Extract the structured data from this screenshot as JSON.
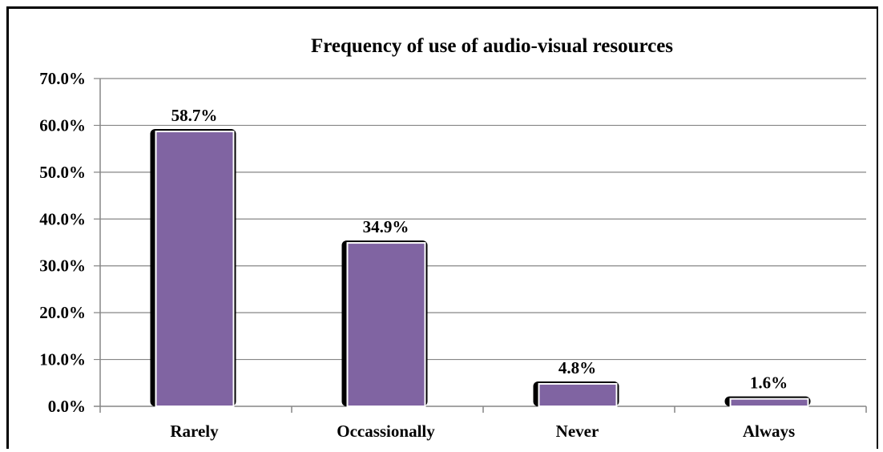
{
  "chart_data": {
    "type": "bar",
    "title": "Frequency of use of audio-visual resources",
    "categories": [
      "Rarely",
      "Occassionally",
      "Never",
      "Always"
    ],
    "values": [
      58.7,
      34.9,
      4.8,
      1.6
    ],
    "data_labels": [
      "58.7%",
      "34.9%",
      "4.8%",
      "1.6%"
    ],
    "y_ticks": [
      "0.0%",
      "10.0%",
      "20.0%",
      "30.0%",
      "40.0%",
      "50.0%",
      "60.0%",
      "70.0%"
    ],
    "ylim": [
      0,
      70
    ],
    "y_step": 10,
    "grid": true,
    "legend": "none",
    "xlabel": "",
    "ylabel": "",
    "colors": {
      "bar_fill": "#8064a2",
      "bar_shadow": "#000000",
      "bar_outline": "#ffffff",
      "gridline": "#868686",
      "axis": "#868686"
    }
  }
}
